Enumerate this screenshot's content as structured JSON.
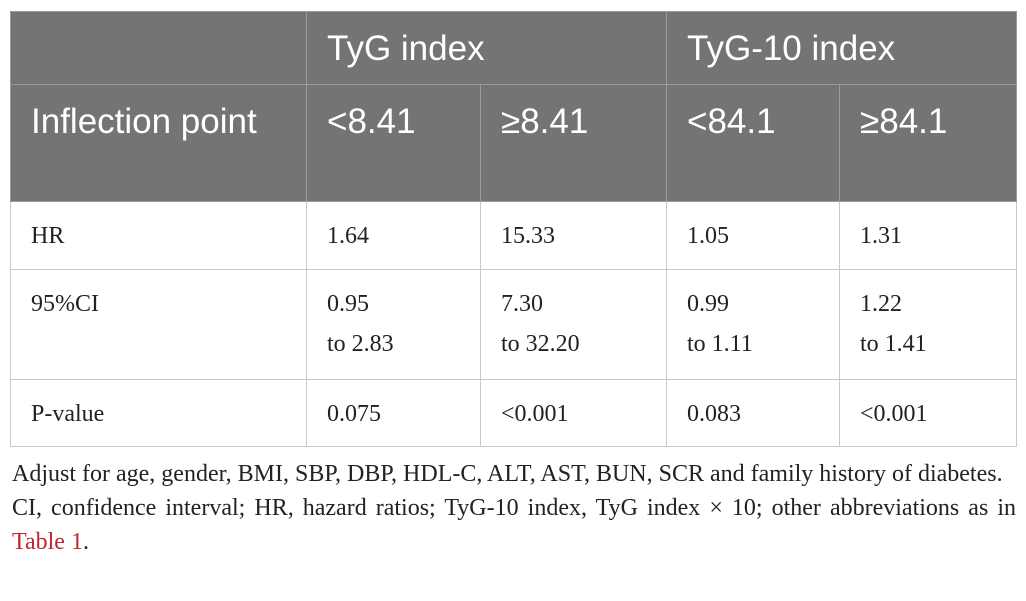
{
  "table": {
    "groups": [
      "TyG index",
      "TyG-10 index"
    ],
    "row_header_label": "Inflection point",
    "thresholds": [
      "<8.41",
      "≥8.41",
      "<84.1",
      "≥84.1"
    ],
    "rows": [
      {
        "label": "HR",
        "values": [
          "1.64",
          "15.33",
          "1.05",
          "1.31"
        ]
      },
      {
        "label": "95%CI",
        "values_line1": [
          "0.95",
          "7.30",
          "0.99",
          "1.22"
        ],
        "values_line2": [
          "to 2.83",
          "to 32.20",
          "to 1.11",
          "to 1.41"
        ]
      },
      {
        "label": "P-value",
        "values": [
          "0.075",
          "<0.001",
          "0.083",
          "<0.001"
        ]
      }
    ]
  },
  "footnotes": {
    "adjust": "Adjust for age, gender, BMI, SBP, DBP, HDL-C, ALT, AST, BUN, SCR and family history of diabetes.",
    "abbrev_text": "CI, confidence interval; HR, hazard ratios; TyG-10 index, TyG index × 10; other abbreviations as in ",
    "abbrev_link": "Table 1",
    "abbrev_end": "."
  },
  "colors": {
    "header_bg": "#747474",
    "header_text": "#ffffff",
    "link": "#c0262d"
  }
}
